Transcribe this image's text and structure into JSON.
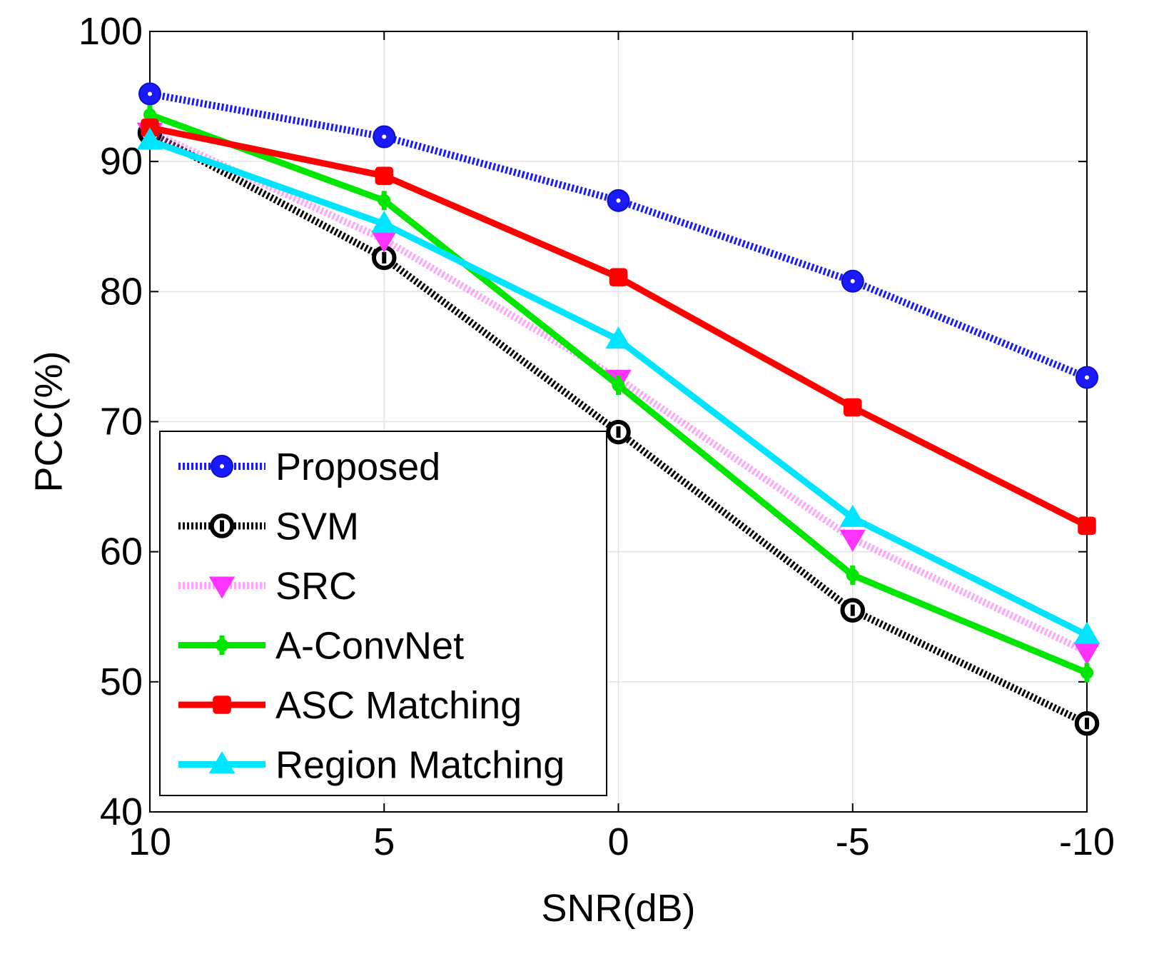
{
  "chart_data": {
    "type": "line",
    "title": "",
    "xlabel": "SNR(dB)",
    "ylabel": "PCC(%)",
    "x": [
      10,
      5,
      0,
      -5,
      -10
    ],
    "x_tick_labels": [
      "10",
      "5",
      "0",
      "-5",
      "-10"
    ],
    "xlim": [
      10,
      -10
    ],
    "ylim": [
      40,
      100
    ],
    "y_ticks": [
      40,
      50,
      60,
      70,
      80,
      90,
      100
    ],
    "y_tick_labels": [
      "40",
      "50",
      "60",
      "70",
      "80",
      "90",
      "100"
    ],
    "grid": true,
    "legend_position": "bottom-left",
    "series": [
      {
        "name": "Proposed",
        "values": [
          95.2,
          91.9,
          87.0,
          80.8,
          73.4
        ],
        "color": "#1a1aff",
        "style": "dotted-thick",
        "marker": "circle"
      },
      {
        "name": "SVM",
        "values": [
          92.2,
          82.6,
          69.2,
          55.5,
          46.8
        ],
        "color": "#000000",
        "style": "dotted-thick",
        "marker": "diamond"
      },
      {
        "name": "SRC",
        "values": [
          92.3,
          84.0,
          73.3,
          61.0,
          52.3
        ],
        "color": "#ff33ff",
        "style": "dotted-light",
        "marker": "triangle-down"
      },
      {
        "name": "A-ConvNet",
        "values": [
          93.6,
          87.0,
          72.8,
          58.2,
          50.7
        ],
        "color": "#00e600",
        "style": "solid",
        "marker": "cross"
      },
      {
        "name": "ASC Matching",
        "values": [
          92.6,
          88.9,
          81.1,
          71.1,
          62.0
        ],
        "color": "#ff0000",
        "style": "solid",
        "marker": "square"
      },
      {
        "name": "Region Matching",
        "values": [
          91.6,
          85.2,
          76.3,
          62.6,
          53.6
        ],
        "color": "#00e5ff",
        "style": "solid",
        "marker": "triangle-up"
      }
    ]
  }
}
